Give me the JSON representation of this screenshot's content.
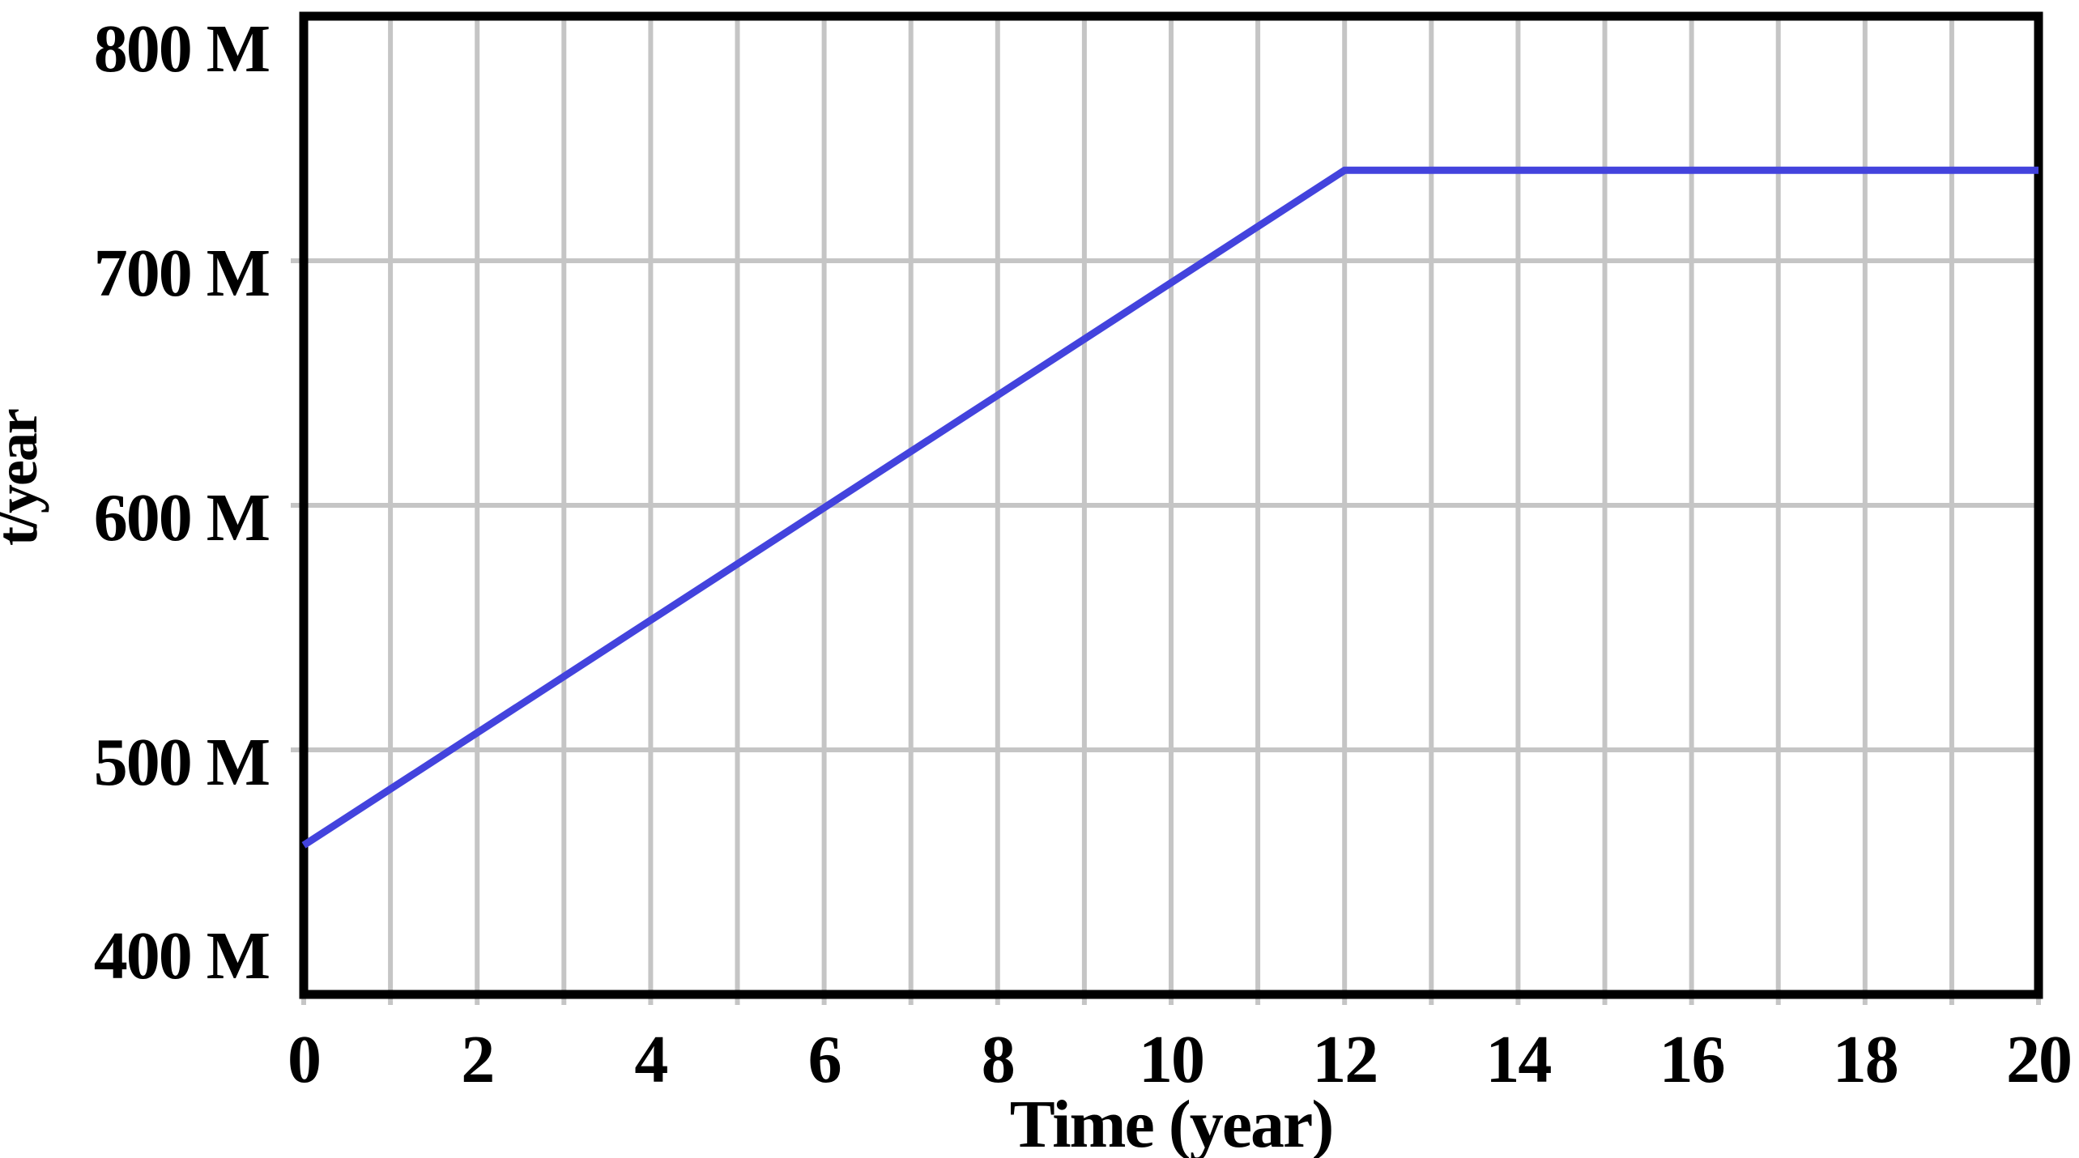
{
  "chart_data": {
    "type": "line",
    "title": "",
    "xlabel": "Time (year)",
    "ylabel": "t/year",
    "xlim": [
      0,
      20
    ],
    "ylim": [
      400,
      800
    ],
    "y_unit": "M",
    "x_ticks": [
      0,
      2,
      4,
      6,
      8,
      10,
      12,
      14,
      16,
      18,
      20
    ],
    "x_tick_labels": [
      "0",
      "2",
      "4",
      "6",
      "8",
      "10",
      "12",
      "14",
      "16",
      "18",
      "20"
    ],
    "y_ticks": [
      400,
      500,
      600,
      700,
      800
    ],
    "y_tick_labels": [
      "400 M",
      "500 M",
      "600 M",
      "700 M",
      "800 M"
    ],
    "grid": true,
    "x_grid_step": 1,
    "legend_position": "none",
    "series": [
      {
        "name": "value",
        "color": "#4343dd",
        "x": [
          0,
          2,
          4,
          6,
          8,
          10,
          12,
          14,
          16,
          18,
          20
        ],
        "y": [
          461,
          507,
          553,
          599,
          645,
          691,
          737,
          737,
          737,
          737,
          737
        ]
      }
    ]
  },
  "styles": {
    "background": "#ffffff",
    "grid_color": "#c5c5c5",
    "border_color": "#000000",
    "line_color": "#4343dd",
    "text_color": "#000000"
  }
}
